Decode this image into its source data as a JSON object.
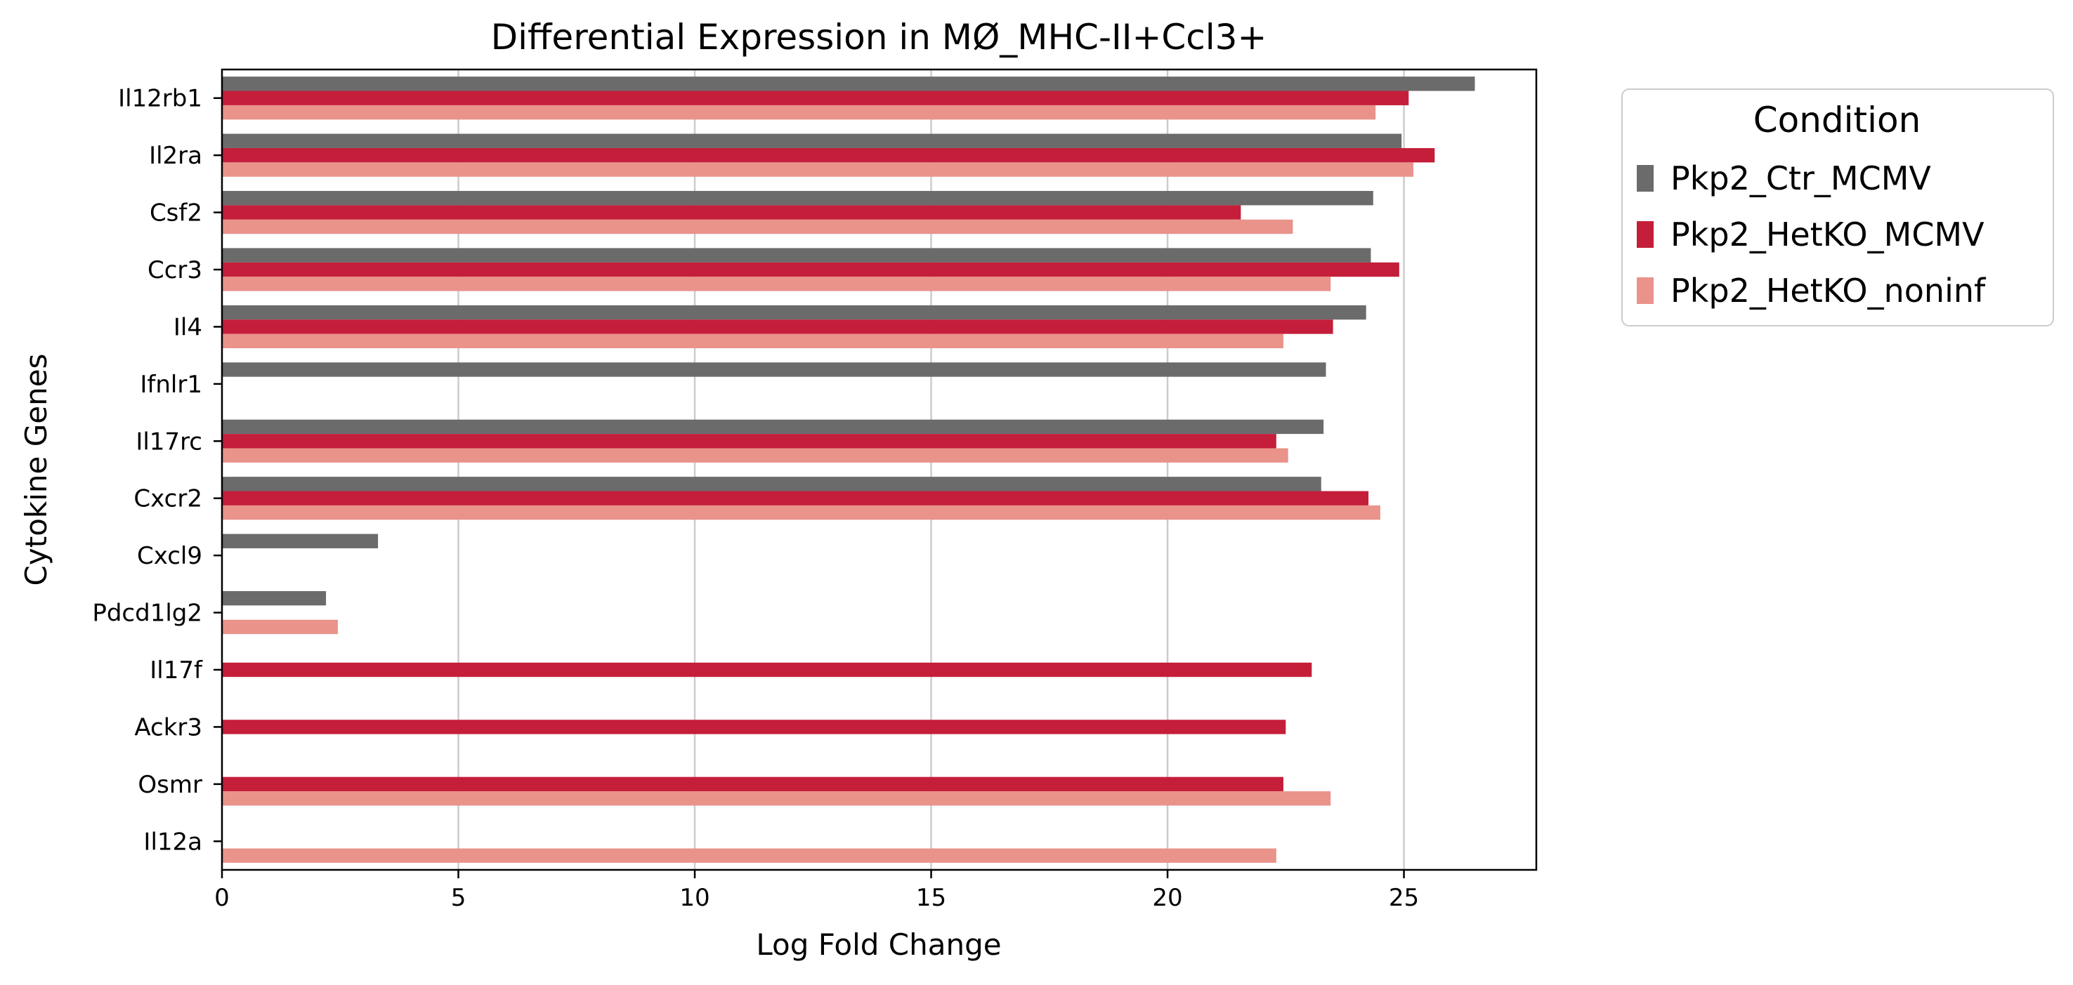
{
  "chart_data": {
    "type": "bar",
    "orientation": "horizontal",
    "title": "Differential Expression in MØ_MHC-II+Ccl3+",
    "xlabel": "Log Fold Change",
    "ylabel": "Cytokine Genes",
    "xlim": [
      0,
      27.8
    ],
    "xticks": [
      0,
      5,
      10,
      15,
      20,
      25
    ],
    "grid": "vertical",
    "legend_title": "Condition",
    "legend_position": "outside-top-right",
    "categories": [
      "Il12rb1",
      "Il2ra",
      "Csf2",
      "Ccr3",
      "Il4",
      "Ifnlr1",
      "Il17rc",
      "Cxcr2",
      "Cxcl9",
      "Pdcd1lg2",
      "Il17f",
      "Ackr3",
      "Osmr",
      "Il12a"
    ],
    "series": [
      {
        "name": "Pkp2_Ctr_MCMV",
        "color": "#6b6b6b",
        "values": [
          26.5,
          24.95,
          24.35,
          24.3,
          24.2,
          23.35,
          23.3,
          23.25,
          3.3,
          2.2,
          null,
          null,
          null,
          null
        ]
      },
      {
        "name": "Pkp2_HetKO_MCMV",
        "color": "#c41e3a",
        "values": [
          25.1,
          25.65,
          21.55,
          24.9,
          23.5,
          null,
          22.3,
          24.25,
          null,
          null,
          23.05,
          22.5,
          22.45,
          null
        ]
      },
      {
        "name": "Pkp2_HetKO_noninf",
        "color": "#e9938b",
        "values": [
          24.4,
          25.2,
          22.65,
          23.45,
          22.45,
          null,
          22.55,
          24.5,
          null,
          2.45,
          null,
          null,
          23.45,
          22.3
        ]
      }
    ]
  }
}
